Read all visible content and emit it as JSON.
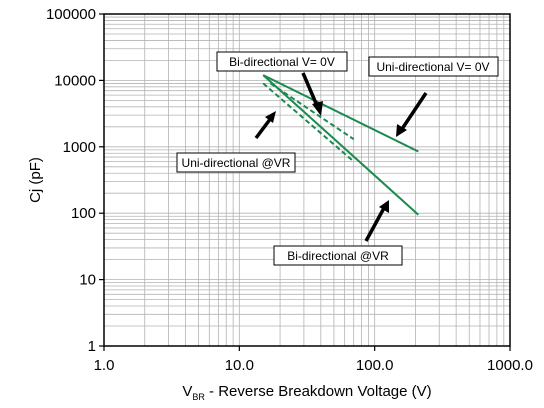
{
  "chart_data": {
    "type": "line",
    "x_scale": "log",
    "y_scale": "log",
    "xlim": [
      1.0,
      1000.0
    ],
    "ylim": [
      1,
      100000
    ],
    "grid": true,
    "xlabel_prefix": "V",
    "xlabel_subscript": "BR",
    "xlabel_suffix": " - Reverse Breakdown Voltage (V)",
    "ylabel": "Cj (pF)",
    "x_ticks": [
      {
        "value": 1,
        "label": "1.0"
      },
      {
        "value": 10,
        "label": "10.0"
      },
      {
        "value": 100,
        "label": "100.0"
      },
      {
        "value": 1000,
        "label": "1000.0"
      }
    ],
    "y_ticks": [
      {
        "value": 1,
        "label": "1"
      },
      {
        "value": 10,
        "label": "10"
      },
      {
        "value": 100,
        "label": "100"
      },
      {
        "value": 1000,
        "label": "1000"
      },
      {
        "value": 10000,
        "label": "10000"
      },
      {
        "value": 100000,
        "label": "100000"
      }
    ],
    "series": [
      {
        "name": "Bi-directional V= 0V",
        "style": "solid",
        "color": "#1a8a4e",
        "x": [
          15,
          210
        ],
        "y": [
          12000,
          850
        ]
      },
      {
        "name": "Bi-directional @VR",
        "style": "solid",
        "color": "#1a8a4e",
        "x": [
          15,
          210
        ],
        "y": [
          12000,
          95
        ]
      },
      {
        "name": "Uni-directional V= 0V",
        "style": "dashed",
        "color": "#1a8a4e",
        "x": [
          17,
          70
        ],
        "y": [
          9000,
          1300
        ]
      },
      {
        "name": "Uni-directional @VR",
        "style": "dashed",
        "color": "#1a8a4e",
        "x": [
          15,
          70
        ],
        "y": [
          9000,
          600
        ]
      }
    ],
    "annotations": [
      {
        "text": "Bi-directional V= 0V"
      },
      {
        "text": "Uni-directional V= 0V"
      },
      {
        "text": "Uni-directional @VR"
      },
      {
        "text": "Bi-directional @VR"
      }
    ]
  }
}
